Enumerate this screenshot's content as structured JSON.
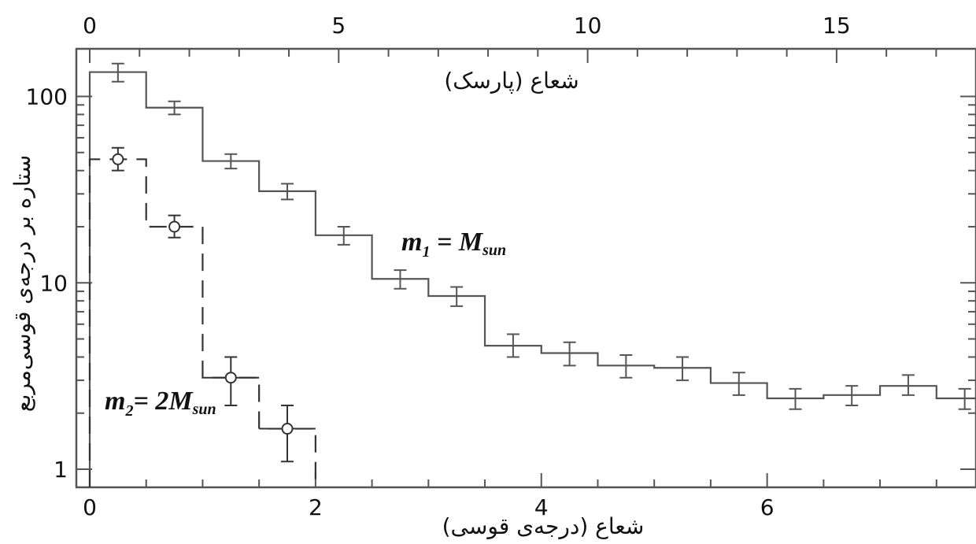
{
  "chart_data": {
    "type": "step",
    "xlabel": "شعاع (درجه‌ی قوسی)",
    "x2label": "شعاع (پارسک)",
    "ylabel": "ستاره بر درجه‌ی قوسی‌مربع",
    "xlim": [
      0,
      7.85
    ],
    "x2lim": [
      0,
      17.8
    ],
    "ylim": [
      0.8,
      180
    ],
    "yscale": "log",
    "xticks": [
      0,
      2,
      4,
      6
    ],
    "x2ticks": [
      0,
      5,
      10,
      15
    ],
    "yticks": [
      1,
      10,
      100
    ],
    "bin_width": 0.5,
    "series": [
      {
        "name": "m1 = Msun",
        "label_main": "m",
        "label_sub": "1",
        "label_eq": " = M",
        "label_sub2": "sun",
        "style": "solid",
        "color": "#555555",
        "marker": "none",
        "x": [
          0.25,
          0.75,
          1.25,
          1.75,
          2.25,
          2.75,
          3.25,
          3.75,
          4.25,
          4.75,
          5.25,
          5.75,
          6.25,
          6.75,
          7.25,
          7.75
        ],
        "y": [
          135,
          87,
          45,
          31,
          18,
          10.5,
          8.5,
          4.6,
          4.2,
          3.6,
          3.5,
          2.9,
          2.4,
          2.5,
          2.8,
          2.4
        ],
        "yerr_low": [
          120,
          80,
          41,
          28,
          16,
          9.3,
          7.5,
          4.0,
          3.6,
          3.1,
          3.0,
          2.5,
          2.1,
          2.2,
          2.5,
          2.1
        ],
        "yerr_high": [
          150,
          94,
          49,
          34,
          20,
          11.7,
          9.5,
          5.3,
          4.8,
          4.1,
          4.0,
          3.3,
          2.7,
          2.8,
          3.2,
          2.7
        ]
      },
      {
        "name": "m2 = 2Msun",
        "label_main": "m",
        "label_sub": "2",
        "label_eq": "= 2M",
        "label_sub2": "sun",
        "style": "dashed",
        "color": "#333333",
        "marker": "circle",
        "x": [
          0.25,
          0.75,
          1.25,
          1.75
        ],
        "y": [
          46,
          20,
          3.1,
          1.65
        ],
        "yerr_low": [
          40,
          17.5,
          2.2,
          1.1
        ],
        "yerr_high": [
          53,
          23,
          4.0,
          2.2
        ],
        "xerr_half": [
          0,
          0,
          0.25,
          0.25
        ]
      }
    ]
  }
}
